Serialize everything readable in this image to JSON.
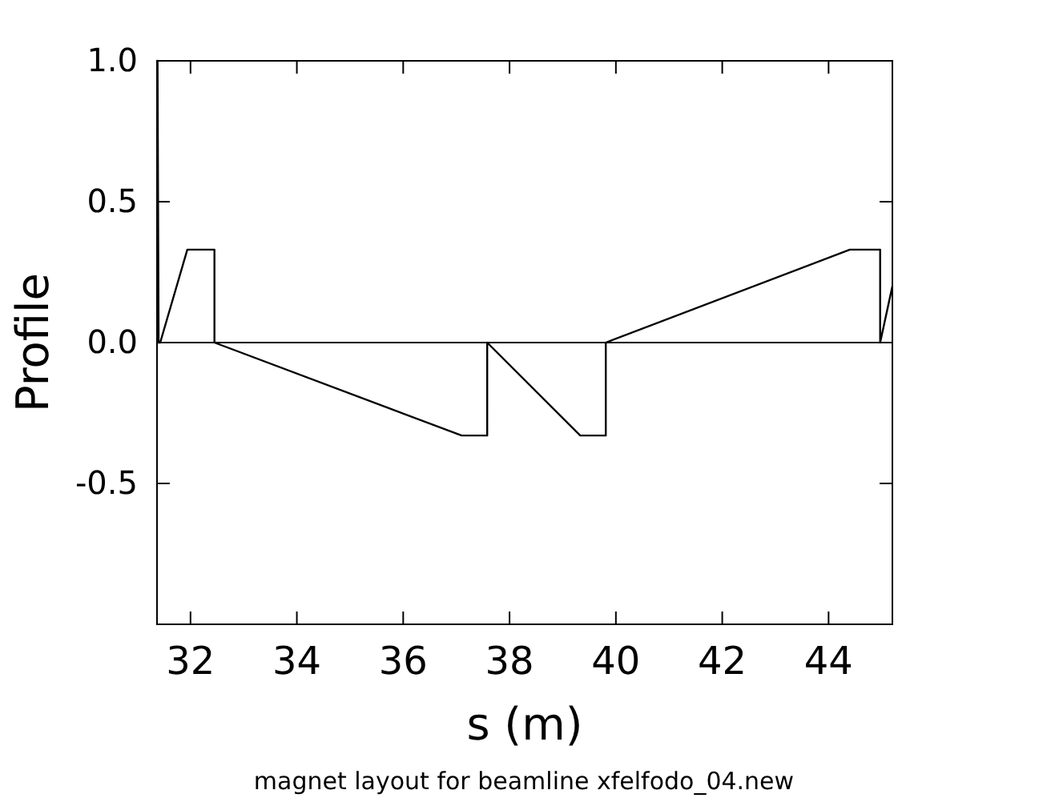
{
  "chart_data": {
    "type": "line",
    "xlabel": "s (m)",
    "ylabel": "Profile",
    "annotations": [
      "magnet layout for beamline xfelfodo_04.new"
    ],
    "xlim": [
      31.37,
      45.2
    ],
    "ylim": [
      -1,
      1
    ],
    "xticks": [
      32,
      34,
      36,
      38,
      40,
      42,
      44
    ],
    "yticks": [
      {
        "value": -0.5,
        "label": "-0.5"
      },
      {
        "value": 0,
        "label": "0.0"
      },
      {
        "value": 0.5,
        "label": "0.5"
      },
      {
        "value": 1,
        "label": "1.0"
      }
    ],
    "ref_lines": [
      {
        "axis": "y",
        "value": 0,
        "label": null,
        "color": "#000000"
      }
    ],
    "series": [
      {
        "color": "#000000",
        "x": [
          31.38,
          31.38,
          31.4,
          31.43,
          31.94,
          32.45,
          32.45,
          37.1,
          37.58,
          37.58,
          39.33,
          39.81,
          39.81,
          44.4,
          44.97,
          44.97,
          45.2
        ],
        "values": [
          0,
          1,
          0,
          0,
          0.33,
          0.33,
          0,
          -0.33,
          -0.33,
          0,
          -0.33,
          -0.33,
          0,
          0.33,
          0.33,
          0,
          0.2
        ]
      }
    ],
    "marker": "none",
    "line_style": "solid"
  }
}
